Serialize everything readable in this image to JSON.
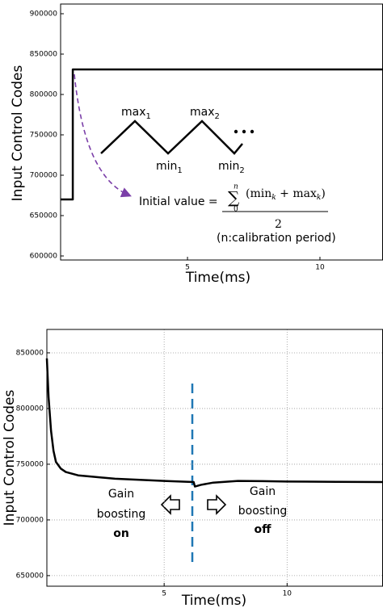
{
  "chart_data": [
    {
      "type": "line",
      "ylabel": "Input Control Codes",
      "xlabel": "Time(ms)",
      "xlim": [
        0.21,
        12.38
      ],
      "ylim": [
        595000,
        912000
      ],
      "xticks": [
        5,
        10
      ],
      "yticks": [
        600000,
        650000,
        700000,
        750000,
        800000,
        850000,
        900000
      ],
      "grid": false,
      "series": [
        {
          "color": "#000000",
          "x": [
            0.21,
            0.67,
            0.67,
            12.38
          ],
          "values": [
            670000,
            670000,
            831000,
            831000
          ]
        }
      ],
      "annotations": [
        {
          "text": "max",
          "sub": "1"
        },
        {
          "text": "max",
          "sub": "2"
        },
        {
          "text": "min",
          "sub": "1"
        },
        {
          "text": "min",
          "sub": "2"
        }
      ],
      "formula": {
        "lhs": "Initial value =",
        "sigma": "∑",
        "upper": "n",
        "lower": "0",
        "numerator": [
          "(min",
          "k",
          " + max",
          "k",
          ")"
        ],
        "denominator": "2",
        "note": "(n:calibration period)"
      }
    },
    {
      "type": "line",
      "ylabel": "Input Control Codes",
      "xlabel": "Time(ms)",
      "xlim": [
        0.23,
        13.9
      ],
      "ylim": [
        640500,
        871000
      ],
      "xticks": [
        5,
        10
      ],
      "yticks": [
        650000,
        700000,
        750000,
        800000,
        850000
      ],
      "grid": true,
      "series": [
        {
          "color": "#000000",
          "x": [
            0.23,
            0.3,
            0.4,
            0.5,
            0.6,
            0.8,
            1.0,
            1.5,
            2,
            3,
            4,
            5,
            6.2,
            6.25,
            6.5,
            7,
            8,
            9,
            10,
            12,
            13.9
          ],
          "values": [
            845000,
            810000,
            780000,
            762000,
            752000,
            746000,
            743000,
            740000,
            739000,
            737000,
            736000,
            735000,
            734000,
            730000,
            731500,
            733500,
            735000,
            734800,
            734500,
            734200,
            734000
          ]
        }
      ],
      "annotations": [
        {
          "lines": [
            "Gain",
            "boosting",
            "on"
          ]
        },
        {
          "lines": [
            "Gain",
            "boosting",
            "off"
          ]
        }
      ]
    }
  ]
}
